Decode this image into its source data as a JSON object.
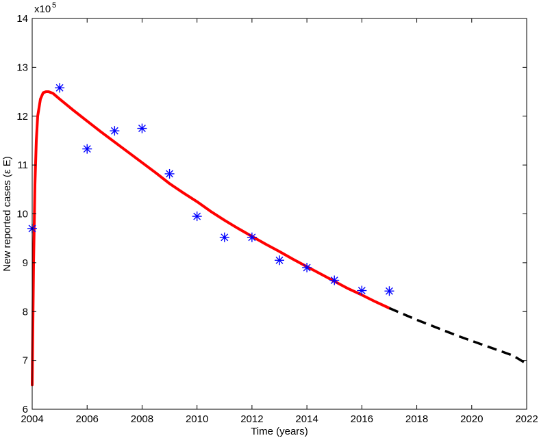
{
  "chart_data": {
    "type": "line",
    "title": "",
    "xlabel": "Time (years)",
    "ylabel": "New reported cases (ε E)",
    "y_multiplier_label": "x10",
    "y_multiplier_exponent": "5",
    "xlim": [
      2004,
      2022
    ],
    "ylim": [
      6,
      14
    ],
    "grid": false,
    "x_ticks": [
      2004,
      2006,
      2008,
      2010,
      2012,
      2014,
      2016,
      2018,
      2020,
      2022
    ],
    "y_ticks": [
      6,
      7,
      8,
      9,
      10,
      11,
      12,
      13,
      14
    ],
    "series": [
      {
        "style": "solid",
        "color": "#ff0000",
        "x": [
          2004.0,
          2004.05,
          2004.1,
          2004.15,
          2004.2,
          2004.3,
          2004.4,
          2004.5,
          2004.6,
          2004.75,
          2005.0,
          2005.5,
          2006.0,
          2006.5,
          2007.0,
          2007.5,
          2008.0,
          2008.5,
          2009.0,
          2009.5,
          2010.0,
          2010.5,
          2011.0,
          2011.5,
          2012.0,
          2012.5,
          2013.0,
          2013.5,
          2014.0,
          2014.5,
          2015.0,
          2015.5,
          2016.0,
          2016.5,
          2017.0
        ],
        "y": [
          6.5,
          9.0,
          10.6,
          11.5,
          12.0,
          12.35,
          12.48,
          12.5,
          12.5,
          12.47,
          12.35,
          12.12,
          11.9,
          11.68,
          11.47,
          11.26,
          11.05,
          10.84,
          10.62,
          10.43,
          10.25,
          10.05,
          9.87,
          9.7,
          9.54,
          9.38,
          9.23,
          9.07,
          8.92,
          8.77,
          8.62,
          8.47,
          8.34,
          8.2,
          8.07
        ]
      },
      {
        "style": "dashed",
        "color": "#000000",
        "x": [
          2017.0,
          2017.5,
          2018.0,
          2018.5,
          2019.0,
          2019.5,
          2020.0,
          2020.5,
          2021.0,
          2021.5,
          2022.0
        ],
        "y": [
          8.07,
          7.95,
          7.83,
          7.72,
          7.61,
          7.5,
          7.4,
          7.3,
          7.2,
          7.1,
          6.93
        ]
      },
      {
        "style": "markers",
        "marker": "asterisk",
        "color": "#0000ff",
        "x": [
          2004,
          2005,
          2006,
          2007,
          2008,
          2009,
          2010,
          2011,
          2012,
          2013,
          2014,
          2015,
          2016,
          2017
        ],
        "y": [
          9.7,
          12.58,
          11.33,
          11.7,
          11.75,
          10.82,
          9.95,
          9.52,
          9.52,
          9.05,
          8.9,
          8.64,
          8.43,
          8.42
        ]
      }
    ]
  }
}
